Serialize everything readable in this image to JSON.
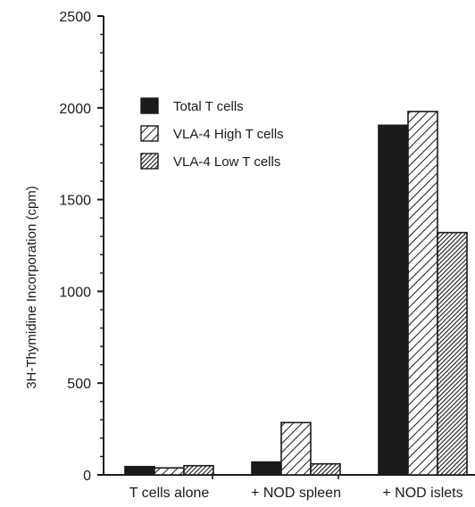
{
  "chart_data": {
    "type": "bar",
    "title": "",
    "ylabel": "3H-Thymidine  Incorporation  (cpm)",
    "xlabel": "",
    "ylim": [
      0,
      2500
    ],
    "yticks": [
      0,
      500,
      1000,
      1500,
      2000,
      2500
    ],
    "grid": false,
    "legend_position": "top-left",
    "categories": [
      "T  cells  alone",
      "+ NOD spleen",
      "+ NOD islets"
    ],
    "series": [
      {
        "name": "Total T cells",
        "values": [
          45,
          70,
          1905
        ],
        "pattern": "solid",
        "color": "#1a1a1a"
      },
      {
        "name": "VLA-4 High T cells",
        "values": [
          38,
          285,
          1980
        ],
        "pattern": "light-hatch",
        "color": "#1a1a1a"
      },
      {
        "name": "VLA-4 Low T cells",
        "values": [
          50,
          60,
          1320
        ],
        "pattern": "dense-hatch",
        "color": "#1a1a1a"
      }
    ]
  }
}
